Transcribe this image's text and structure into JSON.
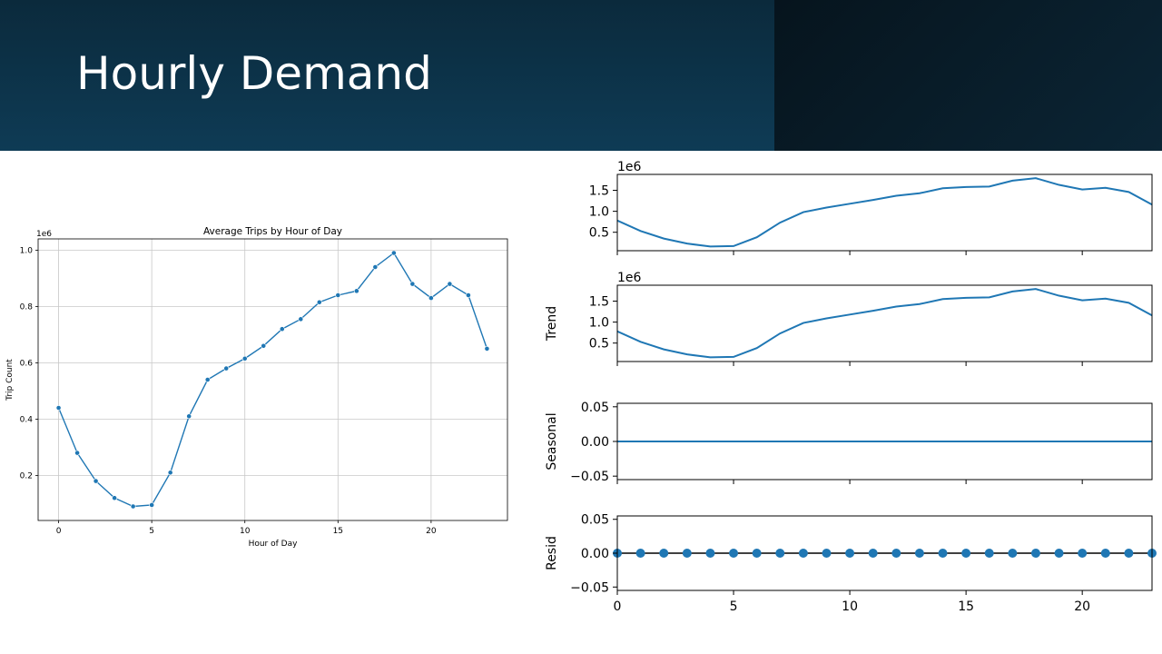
{
  "slide": {
    "title": "Hourly Demand"
  },
  "chart_data": [
    {
      "type": "line",
      "title": "Average Trips by Hour of Day",
      "xlabel": "Hour of Day",
      "ylabel": "Trip Count",
      "offset_label": "1e6",
      "x": [
        0,
        1,
        2,
        3,
        4,
        5,
        6,
        7,
        8,
        9,
        10,
        11,
        12,
        13,
        14,
        15,
        16,
        17,
        18,
        19,
        20,
        21,
        22,
        23
      ],
      "y": [
        0.44,
        0.28,
        0.18,
        0.12,
        0.09,
        0.095,
        0.21,
        0.41,
        0.54,
        0.58,
        0.615,
        0.66,
        0.72,
        0.755,
        0.815,
        0.84,
        0.855,
        0.94,
        0.99,
        0.88,
        0.83,
        0.88,
        0.84,
        0.65
      ],
      "xlim": [
        -1.1,
        24.1
      ],
      "ylim": [
        0.04,
        1.04
      ],
      "xticks": [
        0,
        5,
        10,
        15,
        20
      ],
      "yticks": [
        0.2,
        0.4,
        0.6,
        0.8,
        1.0
      ],
      "ytick_labels": [
        "0.2",
        "0.4",
        "0.6",
        "0.8",
        "1.0"
      ],
      "grid": true,
      "color": "#1f77b4",
      "markers": true
    },
    {
      "type": "line",
      "title": "",
      "ylabel": "",
      "offset_label": "1e6",
      "x": [
        0,
        1,
        2,
        3,
        4,
        5,
        6,
        7,
        8,
        9,
        10,
        11,
        12,
        13,
        14,
        15,
        16,
        17,
        18,
        19,
        20,
        21,
        22,
        23
      ],
      "y": [
        0.78,
        0.53,
        0.35,
        0.23,
        0.16,
        0.17,
        0.38,
        0.73,
        0.98,
        1.09,
        1.18,
        1.27,
        1.37,
        1.43,
        1.55,
        1.58,
        1.59,
        1.73,
        1.79,
        1.63,
        1.52,
        1.56,
        1.46,
        1.16
      ],
      "xlim": [
        0,
        23
      ],
      "ylim": [
        0.06,
        1.88
      ],
      "yticks": [
        0.5,
        1.0,
        1.5
      ],
      "ytick_labels": [
        "0.5",
        "1.0",
        "1.5"
      ],
      "xticks": [
        0,
        5,
        10,
        15,
        20
      ],
      "show_xticklabels": false,
      "color": "#1f77b4"
    },
    {
      "type": "line",
      "title": "",
      "ylabel": "Trend",
      "offset_label": "1e6",
      "x": [
        0,
        1,
        2,
        3,
        4,
        5,
        6,
        7,
        8,
        9,
        10,
        11,
        12,
        13,
        14,
        15,
        16,
        17,
        18,
        19,
        20,
        21,
        22,
        23
      ],
      "y": [
        0.78,
        0.53,
        0.35,
        0.23,
        0.16,
        0.17,
        0.38,
        0.73,
        0.98,
        1.09,
        1.18,
        1.27,
        1.37,
        1.43,
        1.55,
        1.58,
        1.59,
        1.73,
        1.79,
        1.63,
        1.52,
        1.56,
        1.46,
        1.16
      ],
      "xlim": [
        0,
        23
      ],
      "ylim": [
        0.06,
        1.88
      ],
      "yticks": [
        0.5,
        1.0,
        1.5
      ],
      "ytick_labels": [
        "0.5",
        "1.0",
        "1.5"
      ],
      "xticks": [
        0,
        5,
        10,
        15,
        20
      ],
      "show_xticklabels": false,
      "color": "#1f77b4"
    },
    {
      "type": "line",
      "title": "",
      "ylabel": "Seasonal",
      "x": [
        0,
        23
      ],
      "y": [
        0,
        0
      ],
      "xlim": [
        0,
        23
      ],
      "ylim": [
        -0.055,
        0.055
      ],
      "yticks": [
        -0.05,
        0.0,
        0.05
      ],
      "ytick_labels": [
        "−0.05",
        "0.00",
        "0.05"
      ],
      "xticks": [
        0,
        5,
        10,
        15,
        20
      ],
      "show_xticklabels": false,
      "color": "#1f77b4"
    },
    {
      "type": "scatter",
      "title": "",
      "ylabel": "Resid",
      "x": [
        0,
        1,
        2,
        3,
        4,
        5,
        6,
        7,
        8,
        9,
        10,
        11,
        12,
        13,
        14,
        15,
        16,
        17,
        18,
        19,
        20,
        21,
        22,
        23
      ],
      "y": [
        0,
        0,
        0,
        0,
        0,
        0,
        0,
        0,
        0,
        0,
        0,
        0,
        0,
        0,
        0,
        0,
        0,
        0,
        0,
        0,
        0,
        0,
        0,
        0
      ],
      "xlim": [
        0,
        23
      ],
      "ylim": [
        -0.055,
        0.055
      ],
      "yticks": [
        -0.05,
        0.0,
        0.05
      ],
      "ytick_labels": [
        "−0.05",
        "0.00",
        "0.05"
      ],
      "xticks": [
        0,
        5,
        10,
        15,
        20
      ],
      "xtick_labels": [
        "0",
        "5",
        "10",
        "15",
        "20"
      ],
      "show_xticklabels": true,
      "zero_line": true,
      "color": "#1f77b4"
    }
  ]
}
